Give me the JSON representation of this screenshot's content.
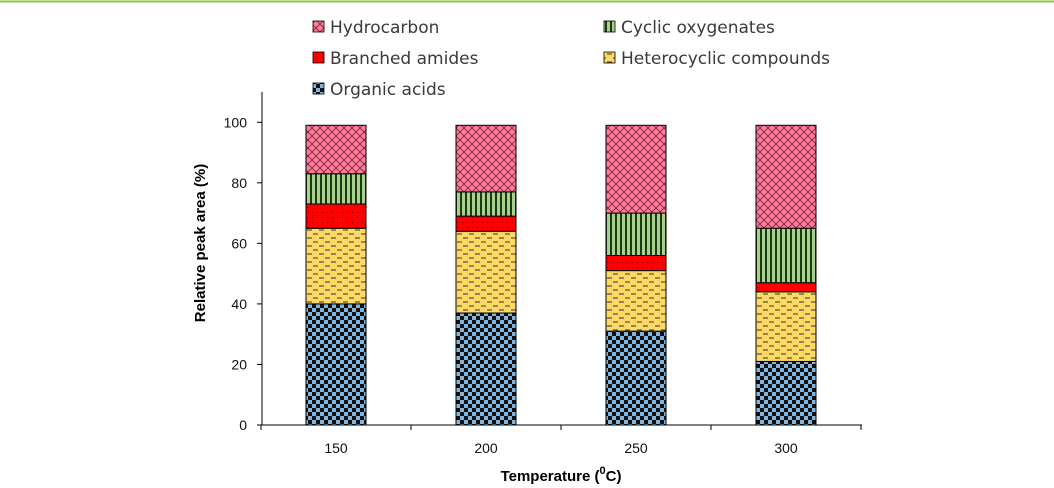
{
  "chart_data": {
    "type": "bar",
    "stacked": true,
    "categories": [
      "150",
      "200",
      "250",
      "300"
    ],
    "series": [
      {
        "name": "Organic acids",
        "values": [
          40,
          37,
          31,
          21
        ],
        "color": "#7fb5df",
        "pattern": "checker"
      },
      {
        "name": "Heterocyclic compounds",
        "values": [
          25,
          27,
          20,
          23
        ],
        "color": "#ffd966",
        "pattern": "dashes"
      },
      {
        "name": "Branched amides",
        "values": [
          8,
          5,
          5,
          3
        ],
        "color": "#ff0000",
        "pattern": "dots"
      },
      {
        "name": "Cyclic oxygenates",
        "values": [
          10,
          8,
          14,
          18
        ],
        "color": "#a9d18e",
        "pattern": "vertical-stripes"
      },
      {
        "name": "Hydrocarbon",
        "values": [
          16,
          22,
          29,
          34
        ],
        "color": "#ff7c9c",
        "pattern": "cross-hatch"
      }
    ],
    "xlabel_main": "Temperature (",
    "xlabel_sup": "0",
    "xlabel_end": "C)",
    "ylabel": "Relative peak area (%)",
    "ylim": [
      0,
      110
    ],
    "yticks": [
      0,
      20,
      40,
      60,
      80,
      100
    ],
    "grid": false,
    "legend_position": "top",
    "legend_order": [
      "Hydrocarbon",
      "Cyclic oxygenates",
      "Branched amides",
      "Heterocyclic compounds",
      "Organic acids"
    ],
    "frame_line_color": "#8cc63f"
  }
}
